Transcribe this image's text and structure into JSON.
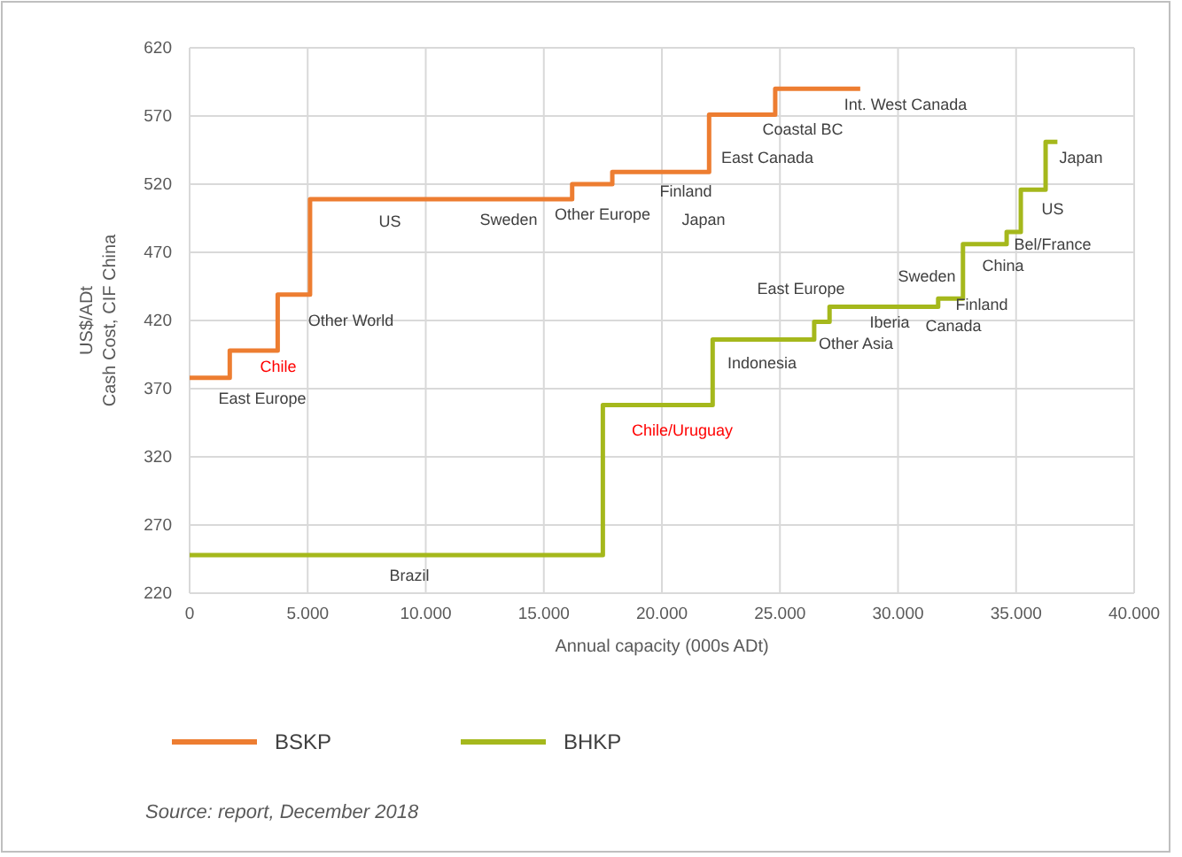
{
  "chart_data": {
    "type": "step",
    "xlabel": "Annual capacity (000s ADt)",
    "ylabel": "US$/ADt\nCash Cost, CIF China",
    "xlim": [
      0,
      40000
    ],
    "xticks": [
      0,
      {
        "value": 5000,
        "label": "5.000"
      },
      {
        "value": 10000,
        "label": "10.000"
      },
      {
        "value": 15000,
        "label": "15.000"
      },
      {
        "value": 20000,
        "label": "20.000"
      },
      {
        "value": 25000,
        "label": "25.000"
      },
      {
        "value": 30000,
        "label": "30.000"
      },
      {
        "value": 35000,
        "label": "35.000"
      },
      {
        "value": 40000,
        "label": "40.000"
      }
    ],
    "ylim": [
      220,
      620
    ],
    "yticks": [
      220,
      270,
      320,
      370,
      420,
      470,
      520,
      570,
      620
    ],
    "grid": true,
    "legend": "bottom",
    "line_style": "solid",
    "series": [
      {
        "name": "BSKP",
        "color": "#ed7d31",
        "x": [
          0,
          1700,
          3730,
          5100,
          16200,
          17900,
          22000,
          24800,
          28400
        ],
        "values": [
          378,
          398,
          439,
          509,
          520,
          529,
          571,
          590,
          590
        ]
      },
      {
        "name": "BHKP",
        "color": "#a5b81c",
        "x": [
          0,
          17500,
          22150,
          26450,
          27100,
          31700,
          32750,
          34600,
          35200,
          36250,
          36750
        ],
        "values": [
          248,
          358,
          406,
          419,
          430,
          436,
          476,
          485,
          516,
          551,
          551
        ]
      }
    ],
    "annotations": [
      "East Europe",
      "Chile",
      "Other World",
      "US",
      "Sweden",
      "Other Europe",
      "Finland",
      "Japan",
      "East Canada",
      "Coastal BC",
      "Int. West Canada",
      "Brazil",
      "Chile/Uruguay",
      "Indonesia",
      "Other Asia",
      "Iberia",
      "East Europe",
      "Canada",
      "Finland",
      "Sweden",
      "China",
      "Bel/France",
      "US",
      "Japan",
      "Source: report, December 2018"
    ]
  }
}
